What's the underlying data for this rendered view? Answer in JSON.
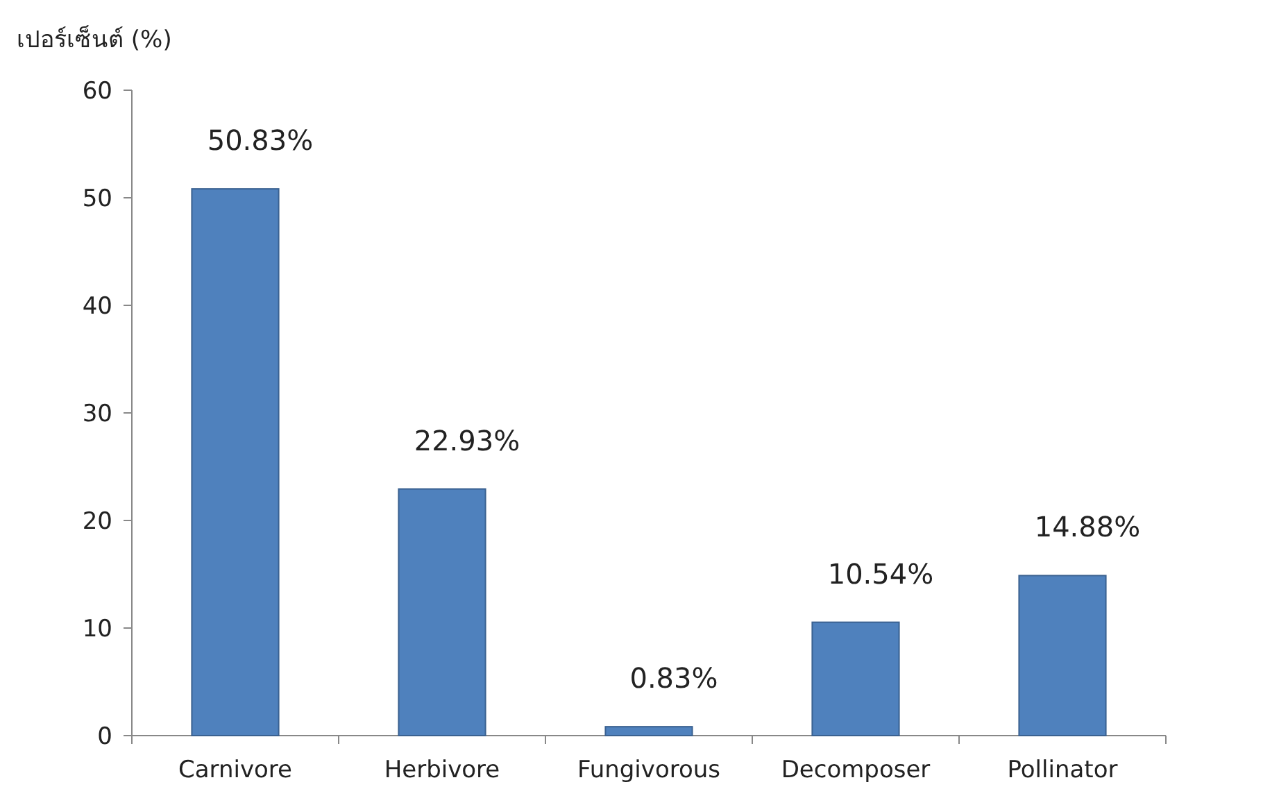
{
  "chart_data": {
    "type": "bar",
    "ylabel": "เปอร์เซ็นต์ (%)",
    "categories": [
      "Carnivore",
      "Herbivore",
      "Fungivorous",
      "Decomposer",
      "Pollinator"
    ],
    "values": [
      50.83,
      22.93,
      0.83,
      10.54,
      14.88
    ],
    "value_labels": [
      "50.83%",
      "22.93%",
      "0.83%",
      "10.54%",
      "14.88%"
    ],
    "color": "#4f81bd",
    "ylim": [
      0,
      60
    ],
    "yticks": [
      0,
      10,
      20,
      30,
      40,
      50,
      60
    ]
  }
}
